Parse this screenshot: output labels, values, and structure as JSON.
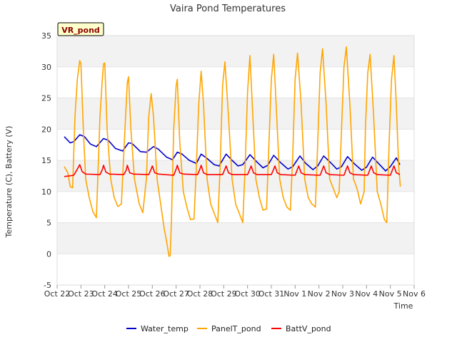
{
  "chart_data": {
    "type": "line",
    "title": "Vaira Pond Temperatures",
    "xlabel": "Time",
    "ylabel": "Temperature (C), Battery (V)",
    "station_label": "VR_pond",
    "ylim": [
      -5,
      35
    ],
    "yticks": [
      -5,
      0,
      5,
      10,
      15,
      20,
      25,
      30,
      35
    ],
    "xlim": [
      0,
      15
    ],
    "xticks": [
      {
        "x": 0,
        "label": "Oct 22"
      },
      {
        "x": 1,
        "label": "Oct 23"
      },
      {
        "x": 2,
        "label": "Oct 24"
      },
      {
        "x": 3,
        "label": "Oct 25"
      },
      {
        "x": 4,
        "label": "Oct 26"
      },
      {
        "x": 5,
        "label": "Oct 27"
      },
      {
        "x": 6,
        "label": "Oct 28"
      },
      {
        "x": 7,
        "label": "Oct 29"
      },
      {
        "x": 8,
        "label": "Oct 30"
      },
      {
        "x": 9,
        "label": "Oct 31"
      },
      {
        "x": 10,
        "label": "Nov 1"
      },
      {
        "x": 11,
        "label": "Nov 2"
      },
      {
        "x": 12,
        "label": "Nov 3"
      },
      {
        "x": 13,
        "label": "Nov 4"
      },
      {
        "x": 14,
        "label": "Nov 5"
      },
      {
        "x": 15,
        "label": "Nov 6"
      }
    ],
    "grid": "horizontal bands",
    "legend_position": "bottom",
    "series": [
      {
        "name": "Water_temp",
        "color": "#0000cc",
        "points": [
          [
            0.3,
            18.8
          ],
          [
            0.55,
            17.8
          ],
          [
            0.7,
            18.0
          ],
          [
            0.95,
            19.1
          ],
          [
            1.15,
            18.8
          ],
          [
            1.4,
            17.6
          ],
          [
            1.65,
            17.2
          ],
          [
            1.95,
            18.5
          ],
          [
            2.15,
            18.2
          ],
          [
            2.45,
            16.9
          ],
          [
            2.75,
            16.5
          ],
          [
            3.0,
            17.8
          ],
          [
            3.15,
            17.7
          ],
          [
            3.5,
            16.4
          ],
          [
            3.75,
            16.3
          ],
          [
            4.05,
            17.2
          ],
          [
            4.25,
            16.8
          ],
          [
            4.6,
            15.5
          ],
          [
            4.85,
            15.1
          ],
          [
            5.05,
            16.3
          ],
          [
            5.25,
            16.0
          ],
          [
            5.55,
            15.0
          ],
          [
            5.85,
            14.5
          ],
          [
            6.05,
            16.0
          ],
          [
            6.3,
            15.3
          ],
          [
            6.6,
            14.3
          ],
          [
            6.8,
            14.1
          ],
          [
            7.1,
            16.0
          ],
          [
            7.35,
            15.0
          ],
          [
            7.6,
            14.1
          ],
          [
            7.8,
            14.3
          ],
          [
            8.1,
            15.9
          ],
          [
            8.4,
            14.7
          ],
          [
            8.65,
            13.8
          ],
          [
            8.85,
            14.2
          ],
          [
            9.1,
            15.8
          ],
          [
            9.4,
            14.6
          ],
          [
            9.7,
            13.6
          ],
          [
            9.9,
            14.0
          ],
          [
            10.2,
            15.7
          ],
          [
            10.45,
            14.5
          ],
          [
            10.75,
            13.5
          ],
          [
            10.95,
            14.1
          ],
          [
            11.2,
            15.7
          ],
          [
            11.5,
            14.6
          ],
          [
            11.75,
            13.6
          ],
          [
            11.95,
            14.0
          ],
          [
            12.2,
            15.6
          ],
          [
            12.5,
            14.4
          ],
          [
            12.8,
            13.4
          ],
          [
            13.0,
            13.9
          ],
          [
            13.25,
            15.5
          ],
          [
            13.55,
            14.3
          ],
          [
            13.8,
            13.3
          ],
          [
            14.0,
            14.0
          ],
          [
            14.25,
            15.4
          ],
          [
            14.4,
            14.3
          ]
        ]
      },
      {
        "name": "PanelT_pond",
        "color": "#ffa500",
        "points": [
          [
            0.3,
            14.0
          ],
          [
            0.45,
            13.0
          ],
          [
            0.55,
            10.8
          ],
          [
            0.65,
            10.6
          ],
          [
            0.75,
            22.0
          ],
          [
            0.85,
            28.0
          ],
          [
            0.95,
            31.0
          ],
          [
            1.0,
            30.5
          ],
          [
            1.1,
            20.0
          ],
          [
            1.2,
            12.0
          ],
          [
            1.35,
            9.0
          ],
          [
            1.5,
            6.8
          ],
          [
            1.65,
            5.8
          ],
          [
            1.8,
            22.0
          ],
          [
            1.9,
            28.0
          ],
          [
            1.95,
            30.5
          ],
          [
            2.0,
            30.6
          ],
          [
            2.1,
            20.0
          ],
          [
            2.25,
            12.0
          ],
          [
            2.4,
            9.0
          ],
          [
            2.55,
            7.6
          ],
          [
            2.7,
            8.0
          ],
          [
            2.85,
            20.0
          ],
          [
            2.95,
            27.5
          ],
          [
            3.0,
            28.4
          ],
          [
            3.1,
            20.0
          ],
          [
            3.25,
            12.0
          ],
          [
            3.45,
            8.0
          ],
          [
            3.6,
            6.6
          ],
          [
            3.75,
            12.0
          ],
          [
            3.85,
            22.0
          ],
          [
            3.95,
            25.7
          ],
          [
            4.05,
            22.0
          ],
          [
            4.2,
            12.0
          ],
          [
            4.35,
            8.0
          ],
          [
            4.5,
            4.0
          ],
          [
            4.6,
            2.0
          ],
          [
            4.7,
            -0.4
          ],
          [
            4.75,
            -0.3
          ],
          [
            4.8,
            5.0
          ],
          [
            4.9,
            20.0
          ],
          [
            5.0,
            27.0
          ],
          [
            5.05,
            28.0
          ],
          [
            5.15,
            18.0
          ],
          [
            5.3,
            10.0
          ],
          [
            5.45,
            7.5
          ],
          [
            5.6,
            5.5
          ],
          [
            5.75,
            5.6
          ],
          [
            5.85,
            14.0
          ],
          [
            5.95,
            24.0
          ],
          [
            6.05,
            29.3
          ],
          [
            6.15,
            24.0
          ],
          [
            6.3,
            12.0
          ],
          [
            6.45,
            8.0
          ],
          [
            6.6,
            6.5
          ],
          [
            6.75,
            5.0
          ],
          [
            6.85,
            14.0
          ],
          [
            6.95,
            27.0
          ],
          [
            7.05,
            30.8
          ],
          [
            7.2,
            22.0
          ],
          [
            7.35,
            12.0
          ],
          [
            7.5,
            8.0
          ],
          [
            7.65,
            6.5
          ],
          [
            7.8,
            5.0
          ],
          [
            7.9,
            14.0
          ],
          [
            8.0,
            26.0
          ],
          [
            8.1,
            31.8
          ],
          [
            8.2,
            24.0
          ],
          [
            8.35,
            12.0
          ],
          [
            8.5,
            9.0
          ],
          [
            8.65,
            7.0
          ],
          [
            8.8,
            7.2
          ],
          [
            8.9,
            18.0
          ],
          [
            9.0,
            28.0
          ],
          [
            9.1,
            32.0
          ],
          [
            9.2,
            24.0
          ],
          [
            9.35,
            12.0
          ],
          [
            9.5,
            9.0
          ],
          [
            9.65,
            7.5
          ],
          [
            9.8,
            7.0
          ],
          [
            9.9,
            16.0
          ],
          [
            10.0,
            28.0
          ],
          [
            10.1,
            32.2
          ],
          [
            10.25,
            24.0
          ],
          [
            10.4,
            12.0
          ],
          [
            10.55,
            9.0
          ],
          [
            10.7,
            8.0
          ],
          [
            10.85,
            7.5
          ],
          [
            10.95,
            18.0
          ],
          [
            11.05,
            29.0
          ],
          [
            11.15,
            32.9
          ],
          [
            11.3,
            24.0
          ],
          [
            11.45,
            12.0
          ],
          [
            11.6,
            10.5
          ],
          [
            11.75,
            9.0
          ],
          [
            11.85,
            10.0
          ],
          [
            11.95,
            20.0
          ],
          [
            12.05,
            30.0
          ],
          [
            12.15,
            33.2
          ],
          [
            12.3,
            24.0
          ],
          [
            12.45,
            12.0
          ],
          [
            12.6,
            10.5
          ],
          [
            12.75,
            8.0
          ],
          [
            12.9,
            10.0
          ],
          [
            12.95,
            20.0
          ],
          [
            13.05,
            29.0
          ],
          [
            13.15,
            32.0
          ],
          [
            13.3,
            22.0
          ],
          [
            13.45,
            10.0
          ],
          [
            13.6,
            8.0
          ],
          [
            13.75,
            5.5
          ],
          [
            13.85,
            5.0
          ],
          [
            13.95,
            18.0
          ],
          [
            14.05,
            28.0
          ],
          [
            14.15,
            31.8
          ],
          [
            14.25,
            24.0
          ],
          [
            14.35,
            14.0
          ],
          [
            14.42,
            10.8
          ]
        ]
      },
      {
        "name": "BattV_pond",
        "color": "#ff0000",
        "points": [
          [
            0.3,
            12.4
          ],
          [
            0.7,
            12.6
          ],
          [
            0.85,
            13.6
          ],
          [
            0.95,
            14.3
          ],
          [
            1.05,
            13.2
          ],
          [
            1.2,
            12.8
          ],
          [
            1.8,
            12.7
          ],
          [
            1.9,
            13.5
          ],
          [
            1.95,
            14.2
          ],
          [
            2.05,
            13.1
          ],
          [
            2.2,
            12.8
          ],
          [
            2.8,
            12.7
          ],
          [
            2.9,
            13.4
          ],
          [
            2.95,
            14.2
          ],
          [
            3.05,
            13.0
          ],
          [
            3.2,
            12.8
          ],
          [
            3.85,
            12.7
          ],
          [
            3.95,
            13.6
          ],
          [
            4.0,
            14.1
          ],
          [
            4.1,
            13.0
          ],
          [
            4.25,
            12.8
          ],
          [
            4.9,
            12.6
          ],
          [
            5.0,
            13.6
          ],
          [
            5.05,
            14.2
          ],
          [
            5.15,
            13.0
          ],
          [
            5.3,
            12.8
          ],
          [
            5.9,
            12.7
          ],
          [
            6.0,
            13.6
          ],
          [
            6.05,
            14.2
          ],
          [
            6.15,
            13.0
          ],
          [
            6.3,
            12.7
          ],
          [
            6.95,
            12.7
          ],
          [
            7.05,
            13.6
          ],
          [
            7.1,
            14.1
          ],
          [
            7.2,
            13.0
          ],
          [
            7.35,
            12.7
          ],
          [
            8.0,
            12.7
          ],
          [
            8.1,
            13.6
          ],
          [
            8.15,
            14.1
          ],
          [
            8.25,
            13.0
          ],
          [
            8.4,
            12.7
          ],
          [
            9.0,
            12.7
          ],
          [
            9.1,
            13.6
          ],
          [
            9.15,
            14.1
          ],
          [
            9.25,
            13.0
          ],
          [
            9.4,
            12.7
          ],
          [
            10.0,
            12.6
          ],
          [
            10.1,
            13.6
          ],
          [
            10.15,
            14.1
          ],
          [
            10.25,
            13.0
          ],
          [
            10.4,
            12.7
          ],
          [
            11.05,
            12.6
          ],
          [
            11.15,
            13.6
          ],
          [
            11.2,
            14.1
          ],
          [
            11.3,
            13.0
          ],
          [
            11.45,
            12.7
          ],
          [
            12.05,
            12.6
          ],
          [
            12.15,
            13.6
          ],
          [
            12.2,
            14.1
          ],
          [
            12.3,
            13.0
          ],
          [
            12.45,
            12.7
          ],
          [
            13.05,
            12.6
          ],
          [
            13.15,
            13.6
          ],
          [
            13.2,
            14.1
          ],
          [
            13.3,
            13.0
          ],
          [
            13.45,
            12.7
          ],
          [
            14.0,
            12.6
          ],
          [
            14.1,
            13.6
          ],
          [
            14.15,
            14.1
          ],
          [
            14.25,
            13.0
          ],
          [
            14.4,
            12.7
          ]
        ]
      }
    ]
  }
}
